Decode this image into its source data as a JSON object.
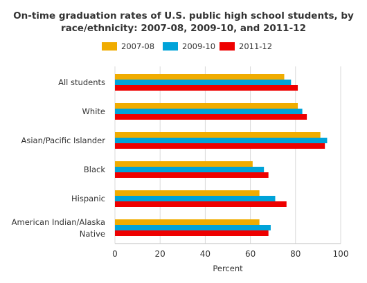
{
  "chart_data": {
    "type": "bar",
    "orientation": "horizontal",
    "title_lines": [
      "On-time graduation rates of U.S. public high school students, by",
      "race/ethnicity: 2007-08, 2009-10, and 2011-12"
    ],
    "categories": [
      [
        "All students"
      ],
      [
        "White"
      ],
      [
        "Asian/Pacific Islander"
      ],
      [
        "Black"
      ],
      [
        "Hispanic"
      ],
      [
        "American Indian/Alaska",
        "Native"
      ]
    ],
    "series": [
      {
        "name": "2007-08",
        "color": "#f0ac00",
        "values": [
          75,
          81,
          91,
          61,
          64,
          64
        ]
      },
      {
        "name": "2009-10",
        "color": "#00a3d9",
        "values": [
          78,
          83,
          94,
          66,
          71,
          69
        ]
      },
      {
        "name": "2011-12",
        "color": "#ee0000",
        "values": [
          81,
          85,
          93,
          68,
          76,
          68
        ]
      }
    ],
    "xlabel": "Percent",
    "xlim": [
      0,
      100
    ],
    "xticks": [
      "0",
      "20",
      "40",
      "60",
      "80",
      "100"
    ],
    "grid": "vertical gridlines",
    "legend_position": "top"
  }
}
